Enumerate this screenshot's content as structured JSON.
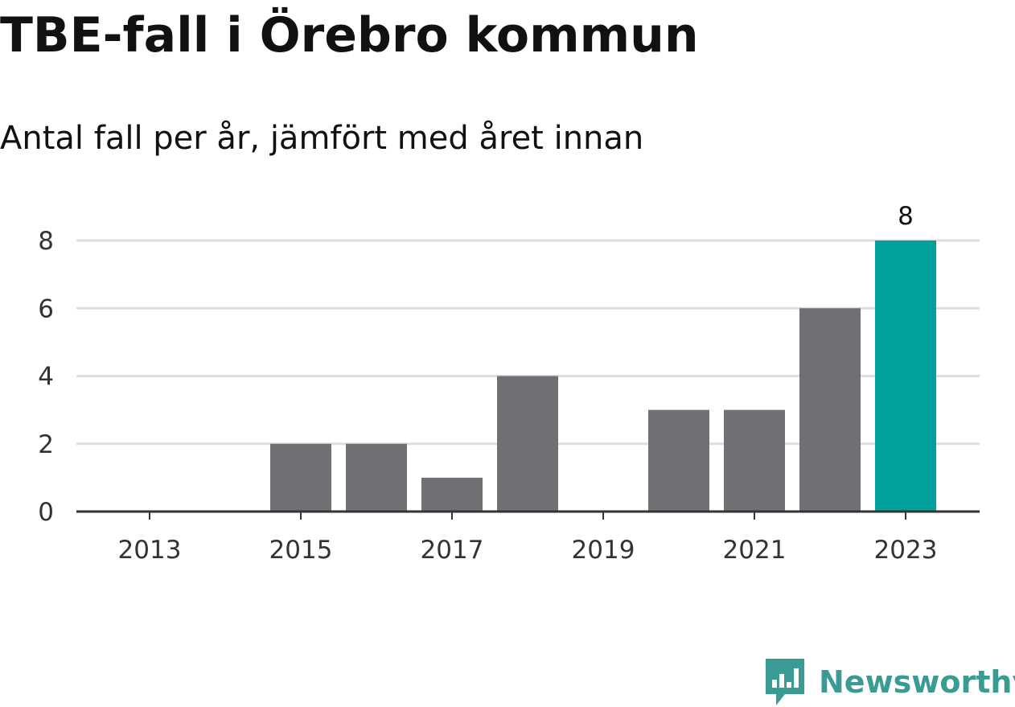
{
  "header": {
    "title": "TBE-fall i Örebro kommun",
    "subtitle": "Antal fall per år, jämfört med året innan"
  },
  "chart_data": {
    "type": "bar",
    "title": "TBE-fall i Örebro kommun",
    "subtitle": "Antal fall per år, jämfört med året innan",
    "categories": [
      "2013",
      "2014",
      "2015",
      "2016",
      "2017",
      "2018",
      "2019",
      "2020",
      "2021",
      "2022",
      "2023"
    ],
    "values": [
      0,
      0,
      2,
      2,
      1,
      4,
      0,
      3,
      3,
      6,
      8
    ],
    "x_tick_labels": [
      "2013",
      "2015",
      "2017",
      "2019",
      "2021",
      "2023"
    ],
    "y_ticks": [
      0,
      2,
      4,
      6,
      8
    ],
    "ylim": [
      0,
      8
    ],
    "xlabel": "",
    "ylabel": "",
    "grid": true,
    "highlight_index": 10,
    "data_labels": [
      {
        "index": 10,
        "text": "8"
      }
    ],
    "colors": {
      "bar": "#706f74",
      "highlight": "#00a19a",
      "grid": "#dedede",
      "axis": "#333333"
    }
  },
  "footer": {
    "logo_text": "Newsworthy",
    "logo_icon": "newsworthy-chart-bubble-icon",
    "logo_color": "#3a9a94"
  }
}
